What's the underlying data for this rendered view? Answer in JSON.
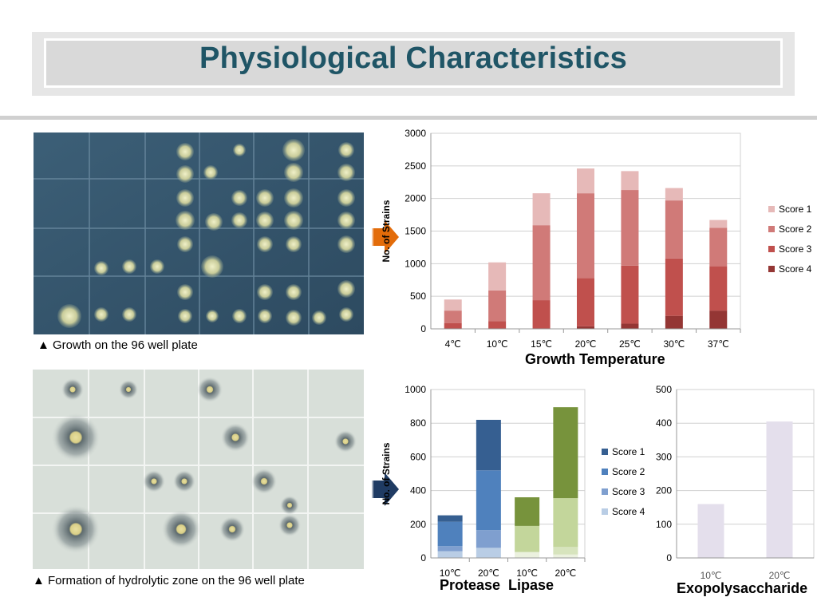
{
  "title": "Physiological Characteristics",
  "captions": {
    "plate1": "▲ Growth on the 96 well plate",
    "plate2": "▲ Formation of hydrolytic zone on the 96 well plate"
  },
  "colors": {
    "title_text": "#1f5566",
    "arrow_orange": "#e36c0a",
    "arrow_navy": "#1f3b63"
  },
  "icons": [
    "right-arrow-icon-orange",
    "right-arrow-icon-navy"
  ],
  "chart_data": [
    {
      "type": "bar",
      "stacked": true,
      "title": "Growth Temperature",
      "ylabel": "No. of Strains",
      "xlabel": "",
      "categories": [
        "4℃",
        "10℃",
        "15℃",
        "20℃",
        "25℃",
        "30℃",
        "37℃"
      ],
      "ylim": [
        0,
        3000
      ],
      "yticks": [
        0,
        500,
        1000,
        1500,
        2000,
        2500,
        3000
      ],
      "grid": true,
      "legend": "right",
      "series": [
        {
          "name": "Score 4",
          "color": "#943634",
          "values": [
            0,
            0,
            0,
            40,
            80,
            200,
            280
          ]
        },
        {
          "name": "Score 3",
          "color": "#c0504d",
          "values": [
            90,
            120,
            440,
            740,
            890,
            880,
            680
          ]
        },
        {
          "name": "Score 2",
          "color": "#d07a78",
          "values": [
            190,
            470,
            1150,
            1300,
            1160,
            890,
            590
          ]
        },
        {
          "name": "Score 1",
          "color": "#e6b9b8",
          "values": [
            170,
            430,
            490,
            380,
            290,
            190,
            120
          ]
        }
      ]
    },
    {
      "type": "bar",
      "stacked": true,
      "title": "Protease  Lipase",
      "ylabel": "No. of Strains",
      "xlabel": "",
      "categories": [
        "10℃",
        "20℃",
        "10℃",
        "20℃"
      ],
      "ylim": [
        0,
        1000
      ],
      "yticks": [
        0,
        200,
        400,
        600,
        800,
        1000
      ],
      "grid": true,
      "legend": "right",
      "legend_entries": [
        {
          "name": "Score 1",
          "color": "#365f91"
        },
        {
          "name": "Score 2",
          "color": "#4f81bd"
        },
        {
          "name": "Score 3",
          "color": "#7f9fcf"
        },
        {
          "name": "Score 4",
          "color": "#b9cde5"
        }
      ],
      "series": [
        {
          "name": "Score 4",
          "colors": [
            "#b9cde5",
            "#b9cde5",
            "#ebf1de",
            "#ebf1de"
          ],
          "values": [
            40,
            60,
            35,
            20
          ]
        },
        {
          "name": "Score 3",
          "colors": [
            "#7f9fcf",
            "#7f9fcf",
            "#d7e4bd",
            "#d7e4bd"
          ],
          "values": [
            30,
            105,
            0,
            45
          ]
        },
        {
          "name": "Score 2",
          "colors": [
            "#4f81bd",
            "#4f81bd",
            "#c3d69b",
            "#c3d69b"
          ],
          "values": [
            145,
            355,
            155,
            290
          ]
        },
        {
          "name": "Score 1",
          "colors": [
            "#365f91",
            "#365f91",
            "#77933c",
            "#77933c"
          ],
          "values": [
            38,
            300,
            170,
            540
          ]
        }
      ]
    },
    {
      "type": "bar",
      "title": "Exopolysaccharide",
      "categories": [
        "10℃",
        "20℃"
      ],
      "ylim": [
        0,
        500
      ],
      "yticks": [
        0,
        100,
        200,
        300,
        400,
        500
      ],
      "grid": true,
      "series": [
        {
          "name": "",
          "color": "#e4dfec",
          "values": [
            160,
            405
          ]
        }
      ]
    }
  ]
}
